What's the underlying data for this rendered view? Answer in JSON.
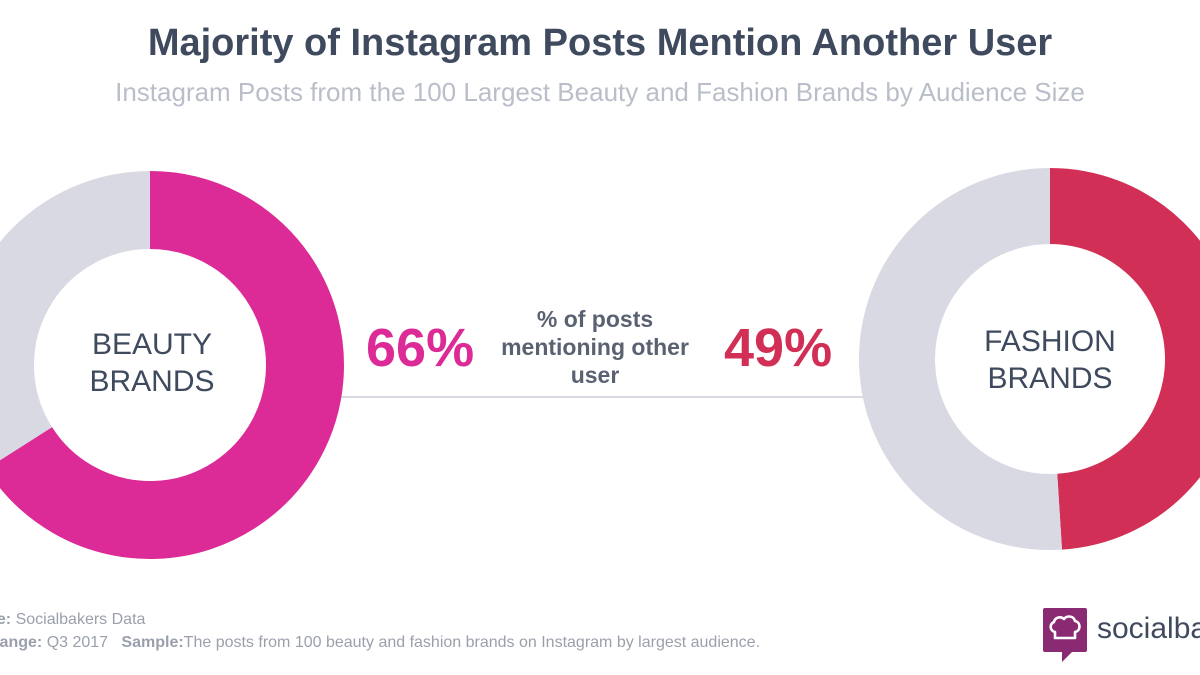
{
  "title": "Majority of Instagram Posts Mention Another User",
  "subtitle": "Instagram Posts from the 100 Largest Beauty and Fashion Brands by Audience Size",
  "middle_label": [
    "% of posts",
    "mentioning other",
    "user"
  ],
  "chart_data": [
    {
      "type": "pie",
      "name": "BEAUTY BRANDS",
      "label_lines": [
        "BEAUTY",
        "BRANDS"
      ],
      "value_label": "66%",
      "values": [
        66,
        34
      ],
      "colors": [
        "#dc2a96",
        "#d8d9e3"
      ]
    },
    {
      "type": "pie",
      "name": "FASHION BRANDS",
      "label_lines": [
        "FASHION",
        "BRANDS"
      ],
      "value_label": "49%",
      "values": [
        49,
        51
      ],
      "colors": [
        "#d22f56",
        "#d8d9e3"
      ]
    }
  ],
  "footer": {
    "source_key": "ce:",
    "source_value": "Socialbakers Data",
    "range_key": "Range:",
    "range_value": "Q3 2017",
    "sample_key": "Sample:",
    "sample_value": "The posts from 100 beauty and fashion brands on Instagram by largest audience."
  },
  "logo": {
    "text": "socialbak",
    "icon": "chef-hat-icon",
    "color": "#8a2a72"
  }
}
